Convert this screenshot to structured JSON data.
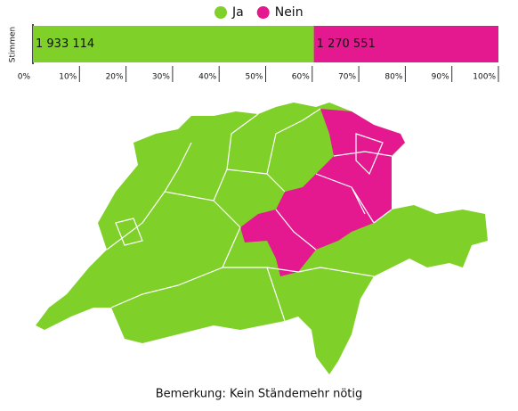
{
  "chart_data": {
    "type": "bar",
    "orientation": "horizontal",
    "stacked": "percent",
    "series": [
      {
        "name": "Ja",
        "color": "#7fd12a",
        "values": [
          1933114
        ],
        "value_labels": [
          "1 933 114"
        ]
      },
      {
        "name": "Nein",
        "color": "#e5198f",
        "values": [
          1270551
        ],
        "value_labels": [
          "1 270 551"
        ]
      }
    ],
    "y_label": "Stimmen",
    "xlim": [
      0,
      100
    ],
    "xticks": [
      {
        "value": 0,
        "label": "0%"
      },
      {
        "value": 10,
        "label": "10%"
      },
      {
        "value": 20,
        "label": "20%"
      },
      {
        "value": 30,
        "label": "30%"
      },
      {
        "value": 40,
        "label": "40%"
      },
      {
        "value": 50,
        "label": "50%"
      },
      {
        "value": 60,
        "label": "60%"
      },
      {
        "value": 70,
        "label": "70%"
      },
      {
        "value": 80,
        "label": "80%"
      },
      {
        "value": 90,
        "label": "90%"
      },
      {
        "value": 100,
        "label": "100%"
      }
    ],
    "note": "Bemerkung: Kein Ständemehr nötig"
  }
}
